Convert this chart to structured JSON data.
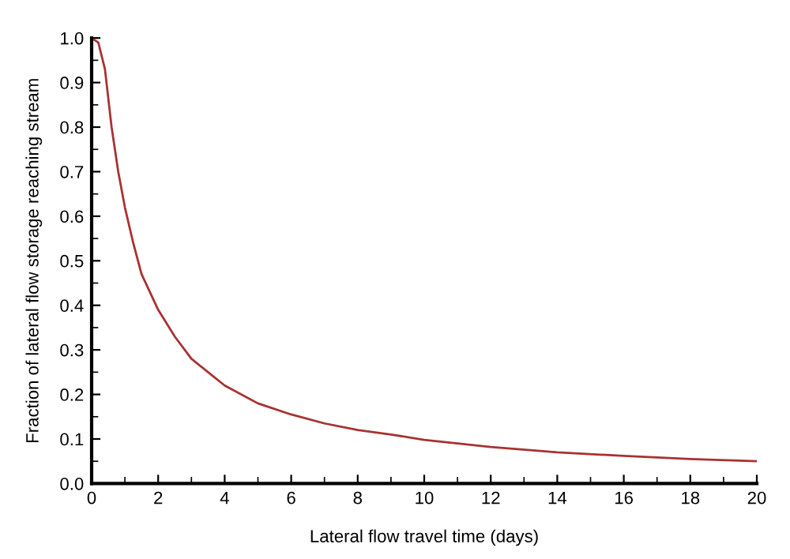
{
  "chart_data": {
    "type": "line",
    "xlabel": "Lateral flow travel time (days)",
    "ylabel": "Fraction of lateral flow storage reaching stream",
    "xlim": [
      0,
      20
    ],
    "ylim": [
      0,
      1
    ],
    "xticks": [
      0,
      2,
      4,
      6,
      8,
      10,
      12,
      14,
      16,
      18,
      20
    ],
    "yticks": [
      {
        "value": 0,
        "label": "0.0"
      },
      0.1,
      0.2,
      0.3,
      0.4,
      0.5,
      0.6,
      0.7,
      0.8,
      0.9,
      {
        "value": 1,
        "label": "1.0"
      }
    ],
    "grid": false,
    "legend": false,
    "marker": "none",
    "line_style": "solid",
    "series": [
      {
        "color": "#a83232",
        "x": [
          0,
          0.2,
          0.4,
          0.6,
          0.8,
          1,
          1.25,
          1.5,
          2,
          2.5,
          3,
          3.5,
          4,
          5,
          6,
          7,
          8,
          9,
          10,
          12,
          14,
          16,
          18,
          20
        ],
        "values": [
          1.0,
          0.99,
          0.93,
          0.8,
          0.7,
          0.62,
          0.54,
          0.47,
          0.39,
          0.33,
          0.28,
          0.25,
          0.22,
          0.18,
          0.155,
          0.135,
          0.12,
          0.11,
          0.098,
          0.082,
          0.07,
          0.062,
          0.055,
          0.05
        ]
      }
    ]
  }
}
